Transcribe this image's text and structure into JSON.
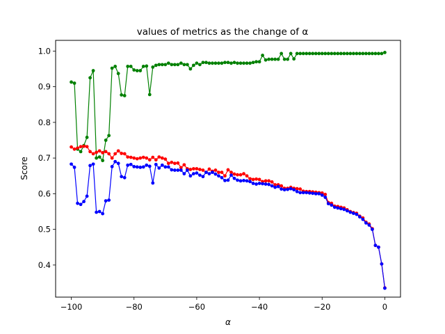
{
  "chart_data": {
    "type": "line",
    "title": "values of metrics as the change of α",
    "xlabel": "α",
    "ylabel": "Score",
    "xlim": [
      -105,
      5
    ],
    "ylim": [
      0.31,
      1.03
    ],
    "xticks": [
      -100,
      -80,
      -60,
      -40,
      -20,
      0
    ],
    "yticks": [
      0.4,
      0.5,
      0.6,
      0.7,
      0.8,
      0.9,
      1.0
    ],
    "xtick_labels": [
      "−100",
      "−80",
      "−60",
      "−40",
      "−20",
      "0"
    ],
    "ytick_labels": [
      "0.4",
      "0.5",
      "0.6",
      "0.7",
      "0.8",
      "0.9",
      "1.0"
    ],
    "grid": false,
    "legend": "none",
    "x": [
      -100,
      -99,
      -98,
      -97,
      -96,
      -95,
      -94,
      -93,
      -92,
      -91,
      -90,
      -89,
      -88,
      -87,
      -86,
      -85,
      -84,
      -83,
      -82,
      -81,
      -80,
      -79,
      -78,
      -77,
      -76,
      -75,
      -74,
      -73,
      -72,
      -71,
      -70,
      -69,
      -68,
      -67,
      -66,
      -65,
      -64,
      -63,
      -62,
      -61,
      -60,
      -59,
      -58,
      -57,
      -56,
      -55,
      -54,
      -53,
      -52,
      -51,
      -50,
      -49,
      -48,
      -47,
      -46,
      -45,
      -44,
      -43,
      -42,
      -41,
      -40,
      -39,
      -38,
      -37,
      -36,
      -35,
      -34,
      -33,
      -32,
      -31,
      -30,
      -29,
      -28,
      -27,
      -26,
      -25,
      -24,
      -23,
      -22,
      -21,
      -20,
      -19,
      -18,
      -17,
      -16,
      -15,
      -14,
      -13,
      -12,
      -11,
      -10,
      -9,
      -8,
      -7,
      -6,
      -5,
      -4,
      -3,
      -2,
      -1,
      0
    ],
    "series": [
      {
        "color": "#008000",
        "values": [
          0.913,
          0.91,
          0.725,
          0.718,
          0.735,
          0.758,
          0.925,
          0.945,
          0.7,
          0.703,
          0.693,
          0.75,
          0.763,
          0.952,
          0.957,
          0.937,
          0.877,
          0.875,
          0.957,
          0.957,
          0.947,
          0.945,
          0.945,
          0.957,
          0.958,
          0.878,
          0.955,
          0.96,
          0.962,
          0.962,
          0.962,
          0.966,
          0.962,
          0.962,
          0.962,
          0.966,
          0.962,
          0.962,
          0.95,
          0.96,
          0.966,
          0.962,
          0.968,
          0.968,
          0.966,
          0.966,
          0.966,
          0.966,
          0.966,
          0.968,
          0.968,
          0.966,
          0.968,
          0.966,
          0.966,
          0.966,
          0.966,
          0.966,
          0.968,
          0.97,
          0.97,
          0.988,
          0.975,
          0.977,
          0.977,
          0.977,
          0.977,
          0.993,
          0.977,
          0.977,
          0.993,
          0.978,
          0.993,
          0.993,
          0.993,
          0.993,
          0.993,
          0.993,
          0.993,
          0.993,
          0.993,
          0.993,
          0.993,
          0.993,
          0.993,
          0.993,
          0.993,
          0.993,
          0.993,
          0.993,
          0.993,
          0.993,
          0.993,
          0.993,
          0.993,
          0.993,
          0.993,
          0.993,
          0.993,
          0.993,
          0.996
        ]
      },
      {
        "color": "#ff0000",
        "values": [
          0.731,
          0.725,
          0.728,
          0.732,
          0.733,
          0.732,
          0.718,
          0.712,
          0.716,
          0.72,
          0.715,
          0.718,
          0.712,
          0.7,
          0.712,
          0.72,
          0.713,
          0.712,
          0.703,
          0.702,
          0.7,
          0.698,
          0.7,
          0.702,
          0.7,
          0.695,
          0.702,
          0.695,
          0.703,
          0.7,
          0.697,
          0.685,
          0.688,
          0.685,
          0.686,
          0.673,
          0.681,
          0.67,
          0.668,
          0.67,
          0.67,
          0.668,
          0.666,
          0.66,
          0.669,
          0.663,
          0.666,
          0.66,
          0.66,
          0.65,
          0.667,
          0.66,
          0.655,
          0.653,
          0.653,
          0.656,
          0.65,
          0.642,
          0.64,
          0.641,
          0.64,
          0.634,
          0.636,
          0.636,
          0.633,
          0.625,
          0.625,
          0.622,
          0.615,
          0.615,
          0.618,
          0.615,
          0.614,
          0.613,
          0.607,
          0.606,
          0.606,
          0.605,
          0.604,
          0.603,
          0.602,
          0.598,
          0.575,
          0.573,
          0.565,
          0.564,
          0.562,
          0.56,
          0.555,
          0.55,
          0.547,
          0.545,
          0.537,
          0.532,
          0.52,
          0.515,
          0.502,
          0.455,
          0.45,
          0.403,
          0.336
        ]
      },
      {
        "color": "#0000ff",
        "values": [
          0.683,
          0.674,
          0.573,
          0.57,
          0.578,
          0.593,
          0.679,
          0.683,
          0.548,
          0.55,
          0.544,
          0.58,
          0.582,
          0.676,
          0.69,
          0.685,
          0.648,
          0.645,
          0.68,
          0.682,
          0.676,
          0.675,
          0.674,
          0.675,
          0.68,
          0.677,
          0.63,
          0.682,
          0.672,
          0.68,
          0.675,
          0.675,
          0.667,
          0.666,
          0.666,
          0.666,
          0.656,
          0.666,
          0.65,
          0.656,
          0.658,
          0.652,
          0.648,
          0.66,
          0.656,
          0.66,
          0.655,
          0.65,
          0.645,
          0.637,
          0.638,
          0.652,
          0.643,
          0.638,
          0.636,
          0.637,
          0.636,
          0.634,
          0.629,
          0.627,
          0.629,
          0.628,
          0.627,
          0.626,
          0.622,
          0.618,
          0.62,
          0.613,
          0.611,
          0.612,
          0.614,
          0.611,
          0.606,
          0.603,
          0.603,
          0.603,
          0.602,
          0.601,
          0.6,
          0.6,
          0.596,
          0.59,
          0.572,
          0.568,
          0.562,
          0.56,
          0.558,
          0.556,
          0.552,
          0.548,
          0.545,
          0.542,
          0.535,
          0.528,
          0.518,
          0.512,
          0.5,
          0.455,
          0.45,
          0.403,
          0.335
        ]
      }
    ]
  }
}
